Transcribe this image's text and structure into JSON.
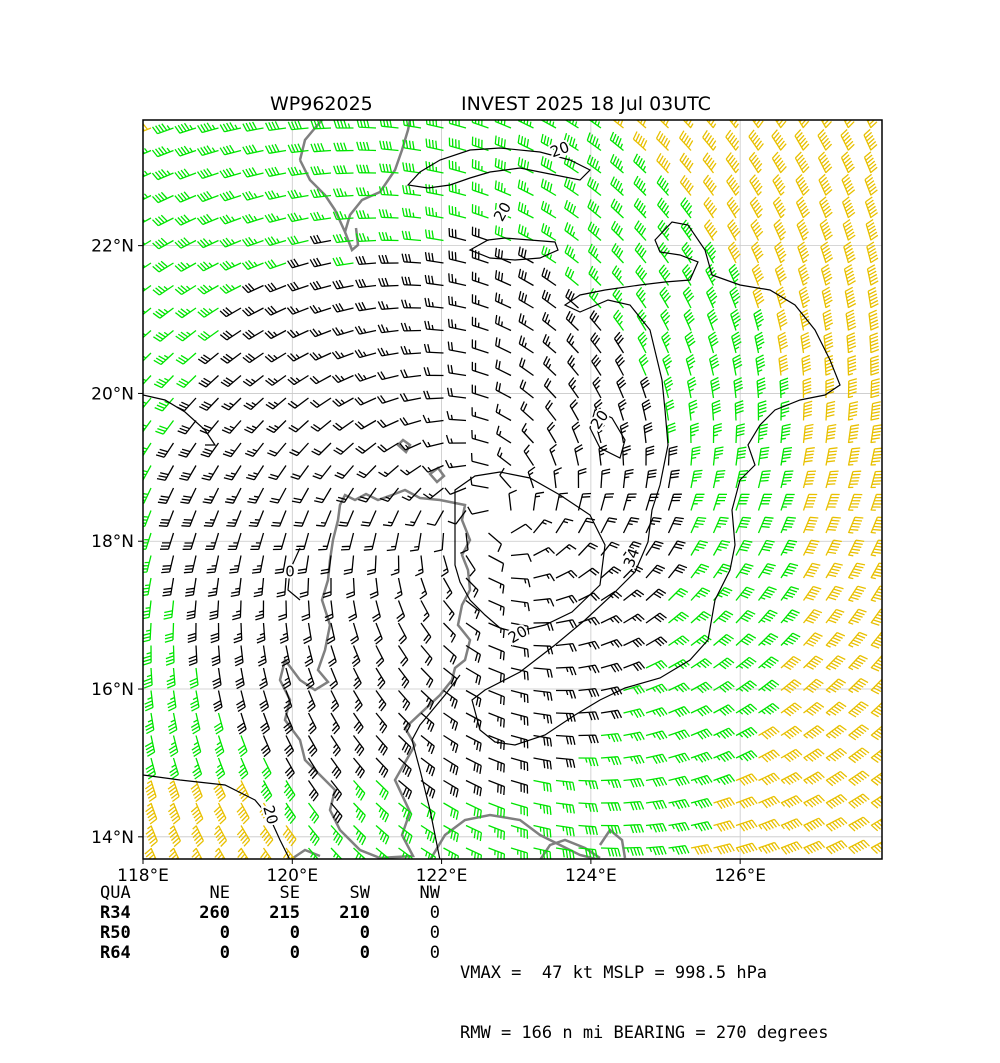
{
  "header": {
    "storm_id": "WP962025",
    "description": "INVEST 2025 18 Jul 03UTC"
  },
  "map": {
    "lon_range": [
      118.0,
      127.9
    ],
    "lat_range": [
      13.7,
      23.7
    ],
    "x_ticks": [
      "118°E",
      "120°E",
      "122°E",
      "124°E",
      "126°E"
    ],
    "y_ticks": [
      "14°N",
      "16°N",
      "18°N",
      "20°N",
      "22°N"
    ],
    "contour_labels": [
      "20",
      "20",
      "20",
      "20",
      "34",
      "20",
      "0"
    ],
    "colors": {
      "barb_below_34kt": "#000000",
      "barb_34_to_49kt": "#00e400",
      "barb_50kt_plus": "#e8c000",
      "coastline": "#808080",
      "contour": "#000000",
      "grid": "#c8c8c8"
    },
    "center": {
      "lon": 122.7,
      "lat": 18.3
    }
  },
  "radii": {
    "header": [
      "QUA",
      "NE",
      "SE",
      "SW",
      "NW"
    ],
    "rows": [
      {
        "label": "R34",
        "values": [
          "260",
          "215",
          "210",
          "0"
        ]
      },
      {
        "label": "R50",
        "values": [
          "0",
          "0",
          "0",
          "0"
        ]
      },
      {
        "label": "R64",
        "values": [
          "0",
          "0",
          "0",
          "0"
        ]
      }
    ]
  },
  "summary": {
    "line1": "VMAX =  47 kt MSLP = 998.5 hPa",
    "line2": "RMW = 166 n mi BEARING = 270 degrees"
  }
}
